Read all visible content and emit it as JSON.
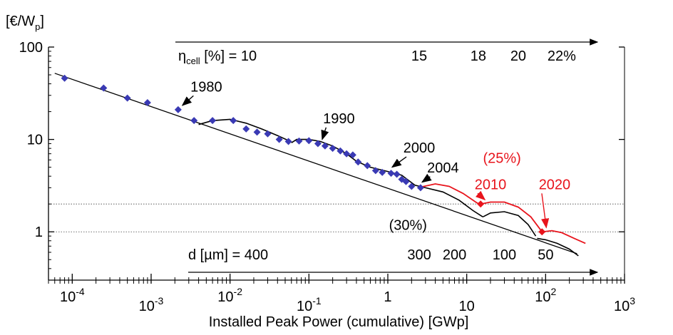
{
  "chart_data": {
    "type": "scatter",
    "title": "",
    "xlabel": "Installed Peak Power (cumulative) [GWp]",
    "ylabel": "[€/Wp]",
    "ylabel_main": "[€/W",
    "ylabel_sub": "p",
    "ylabel_close": "]",
    "xscale": "log",
    "yscale": "log",
    "xlim": [
      5e-05,
      1000
    ],
    "ylim": [
      0.3,
      100
    ],
    "x_ticks": [
      {
        "value": 0.0001,
        "base": "10",
        "exp": "-4"
      },
      {
        "value": 0.001,
        "base": "10",
        "exp": "-3"
      },
      {
        "value": 0.01,
        "base": "10",
        "exp": "-2"
      },
      {
        "value": 0.1,
        "base": "10",
        "exp": "-1"
      },
      {
        "value": 1,
        "base": "1",
        "exp": ""
      },
      {
        "value": 10,
        "base": "10",
        "exp": ""
      },
      {
        "value": 100,
        "base": "10",
        "exp": "2"
      },
      {
        "value": 1000,
        "base": "10",
        "exp": "3"
      }
    ],
    "y_ticks": [
      {
        "value": 100,
        "label": "100"
      },
      {
        "value": 10,
        "label": "10"
      },
      {
        "value": 1,
        "label": "1"
      }
    ],
    "reference_lines": [
      2,
      1
    ],
    "series": [
      {
        "name": "",
        "color": "#3a3ab4",
        "marker": "diamond",
        "points": [
          [
            8e-05,
            46
          ],
          [
            0.00025,
            36
          ],
          [
            0.0005,
            28
          ],
          [
            0.0009,
            25
          ],
          [
            0.0022,
            21
          ],
          [
            0.0035,
            16
          ],
          [
            0.006,
            16
          ],
          [
            0.011,
            16
          ],
          [
            0.016,
            13
          ],
          [
            0.022,
            12
          ],
          [
            0.03,
            11.5
          ],
          [
            0.042,
            10
          ],
          [
            0.055,
            9.5
          ],
          [
            0.075,
            9.6
          ],
          [
            0.1,
            9.7
          ],
          [
            0.13,
            9
          ],
          [
            0.16,
            8.5
          ],
          [
            0.2,
            8
          ],
          [
            0.25,
            7.5
          ],
          [
            0.3,
            7
          ],
          [
            0.36,
            6.8
          ],
          [
            0.42,
            5.7
          ],
          [
            0.55,
            5.2
          ],
          [
            0.7,
            4.6
          ],
          [
            0.85,
            4.4
          ],
          [
            1.1,
            4.3
          ],
          [
            1.3,
            4.2
          ],
          [
            1.5,
            3.7
          ],
          [
            1.7,
            3.5
          ],
          [
            2.0,
            3.1
          ],
          [
            2.6,
            3.0
          ]
        ]
      }
    ],
    "trend_line": [
      [
        6e-05,
        52
      ],
      [
        250,
        0.58
      ]
    ],
    "black_curves": [
      [
        [
          0.004,
          14.5
        ],
        [
          0.006,
          16
        ],
        [
          0.01,
          16.5
        ],
        [
          0.016,
          15
        ],
        [
          0.025,
          13
        ],
        [
          0.04,
          11
        ],
        [
          0.06,
          9.4
        ]
      ],
      [
        [
          0.06,
          9.2
        ],
        [
          0.07,
          10
        ],
        [
          0.1,
          10
        ],
        [
          0.14,
          9.5
        ],
        [
          0.2,
          8.5
        ],
        [
          0.3,
          7
        ],
        [
          0.4,
          5.8
        ],
        [
          0.6,
          5
        ],
        [
          1,
          4.5
        ],
        [
          1.5,
          4.1
        ],
        [
          2.2,
          3.2
        ]
      ],
      [
        [
          2.2,
          3.2
        ],
        [
          3,
          3
        ],
        [
          5,
          2.7
        ],
        [
          8,
          2.2
        ],
        [
          12,
          1.7
        ],
        [
          16,
          1.45
        ]
      ],
      [
        [
          16,
          1.45
        ],
        [
          20,
          1.6
        ],
        [
          30,
          1.65
        ],
        [
          45,
          1.5
        ],
        [
          60,
          1.2
        ],
        [
          75,
          0.9
        ]
      ],
      [
        [
          78,
          0.85
        ],
        [
          100,
          0.82
        ],
        [
          140,
          0.75
        ],
        [
          200,
          0.65
        ],
        [
          260,
          0.55
        ]
      ]
    ],
    "red_curves": [
      [
        [
          2.6,
          3.05
        ],
        [
          4,
          3.3
        ],
        [
          6,
          3.1
        ],
        [
          9,
          2.6
        ],
        [
          13,
          2.1
        ],
        [
          15,
          1.95
        ]
      ],
      [
        [
          15,
          2.0
        ],
        [
          20,
          2.1
        ],
        [
          30,
          2.1
        ],
        [
          45,
          1.85
        ],
        [
          65,
          1.45
        ],
        [
          90,
          1.0
        ]
      ],
      [
        [
          92,
          1.0
        ],
        [
          120,
          1.03
        ],
        [
          160,
          0.98
        ],
        [
          230,
          0.85
        ],
        [
          320,
          0.75
        ]
      ]
    ],
    "red_points": [
      [
        15,
        2.0
      ],
      [
        90,
        1.0
      ]
    ],
    "annotations": [
      {
        "text": "1980",
        "x": 0.005,
        "y": 33,
        "arrow_to": [
          0.0022,
          21
        ],
        "color": "black"
      },
      {
        "text": "1990",
        "x": 0.24,
        "y": 15,
        "arrow_to": [
          0.13,
          9
        ],
        "color": "black"
      },
      {
        "text": "2000",
        "x": 2.5,
        "y": 7.2,
        "arrow_to": [
          1.0,
          4.5
        ],
        "color": "black"
      },
      {
        "text": "2004",
        "x": 5,
        "y": 4.4,
        "arrow_to": [
          2.4,
          3.1
        ],
        "color": "black"
      },
      {
        "text": "(25%)",
        "x": 28,
        "y": 5.6,
        "color": "red"
      },
      {
        "text": "2010",
        "x": 20,
        "y": 2.9,
        "arrow_to": [
          15,
          2.0
        ],
        "color": "red"
      },
      {
        "text": "2020",
        "x": 130,
        "y": 2.9,
        "arrow_to": [
          90,
          1.0
        ],
        "color": "red"
      },
      {
        "text": "(30%)",
        "x": 1.8,
        "y": 1.05,
        "color": "black"
      }
    ],
    "efficiency_scale": {
      "prefix_main": "η",
      "prefix_sub": "cell",
      "prefix_rest": " [%] = 10",
      "labels": [
        {
          "text": "15",
          "x": 2.5
        },
        {
          "text": "18",
          "x": 14
        },
        {
          "text": "20",
          "x": 45
        },
        {
          "text": "22%",
          "x": 160
        }
      ],
      "arrow": [
        [
          0.003,
          900
        ]
      ]
    },
    "thickness_scale": {
      "prefix": "d [µm] = 400",
      "labels": [
        {
          "text": "300",
          "x": 2.5
        },
        {
          "text": "200",
          "x": 7
        },
        {
          "text": "100",
          "x": 30
        },
        {
          "text": "50",
          "x": 100
        }
      ]
    }
  }
}
